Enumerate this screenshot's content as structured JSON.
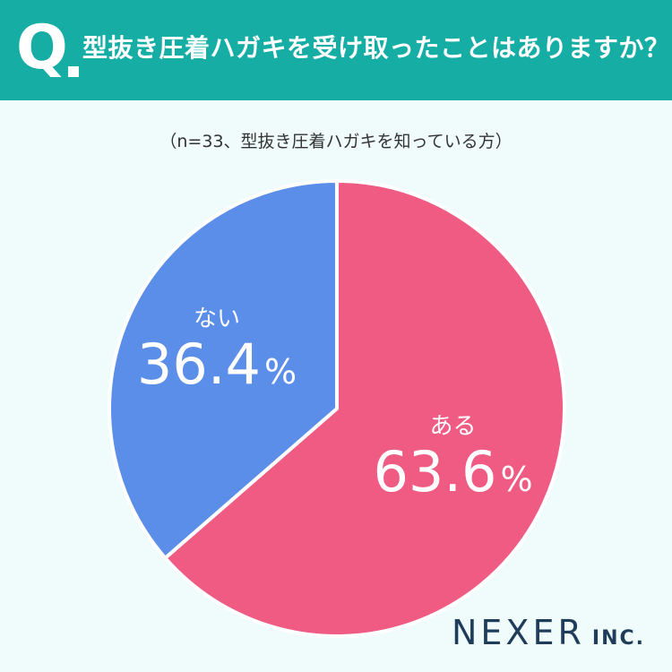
{
  "header": {
    "q_letter": "Q",
    "question": "型抜き圧着ハガキを受け取ったことはありますか？",
    "background": "#16ada5"
  },
  "subtitle": "（n=33、型抜き圧着ハガキを知っている方）",
  "chart_data": {
    "type": "pie",
    "title": "型抜き圧着ハガキを受け取ったことはありますか？",
    "subtitle": "（n=33、型抜き圧着ハガキを知っている方）",
    "slices": [
      {
        "label": "ある",
        "value": 63.6,
        "display": "63.6",
        "unit": "%",
        "color": "#ef5b82"
      },
      {
        "label": "ない",
        "value": 36.4,
        "display": "36.4",
        "unit": "%",
        "color": "#5a8ee8"
      }
    ]
  },
  "brand": {
    "name": "NEXER",
    "suffix": "INC."
  }
}
